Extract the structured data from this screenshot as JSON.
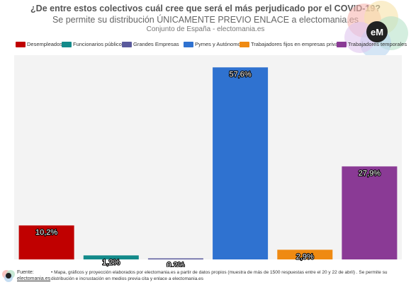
{
  "header": {
    "title": "¿De entre estos colectivos cuál cree que será el más perjudicado por el COVID-19?",
    "subtitle": "Se permite su distribución ÚNICAMENTE PREVIO ENLACE a electomania.es",
    "scope": "Conjunto de España - electomania.es",
    "logo_text": "eM"
  },
  "colors": {
    "logo_circles": [
      "#f6b6b1",
      "#f7e3a8",
      "#b8e2c9",
      "#b7d4ef",
      "#e0c6ee"
    ],
    "logo_center": "#222222",
    "value_label": "#ffffff",
    "plot_background": "#f3f3f3"
  },
  "chart_data": {
    "type": "bar",
    "title": "¿De entre estos colectivos cuál cree que será el más perjudicado por el COVID-19?",
    "categories": [
      "Desempleados",
      "Funcionarios públicos",
      "Grandes Empresas",
      "Pymes y Autónomos",
      "Trabajadores fijos en empresas privadas",
      "Trabajadores temporales"
    ],
    "values": [
      10.2,
      1.2,
      0.2,
      57.6,
      2.9,
      27.9
    ],
    "value_labels": [
      "10,2%",
      "1,2%",
      "0,2%",
      "57,6%",
      "2,9%",
      "27,9%"
    ],
    "colors": [
      "#c00000",
      "#138a8a",
      "#5a5a9c",
      "#2f72d0",
      "#ef8a12",
      "#8a3a95"
    ],
    "ylim": [
      0,
      60
    ],
    "grid": false,
    "legend_position": "top"
  },
  "footer": {
    "source_label": "Fuente:",
    "source_link": "electomania.es",
    "note": "• Mapa, gráficos y proyección elaborados por electomania.es a partir de datos propios (muestra de más de 1500 respuestas entre el 20 y 22 de abril) . Se permite su distribución e incrustación en medios previa cita y enlace a electomania.es"
  }
}
